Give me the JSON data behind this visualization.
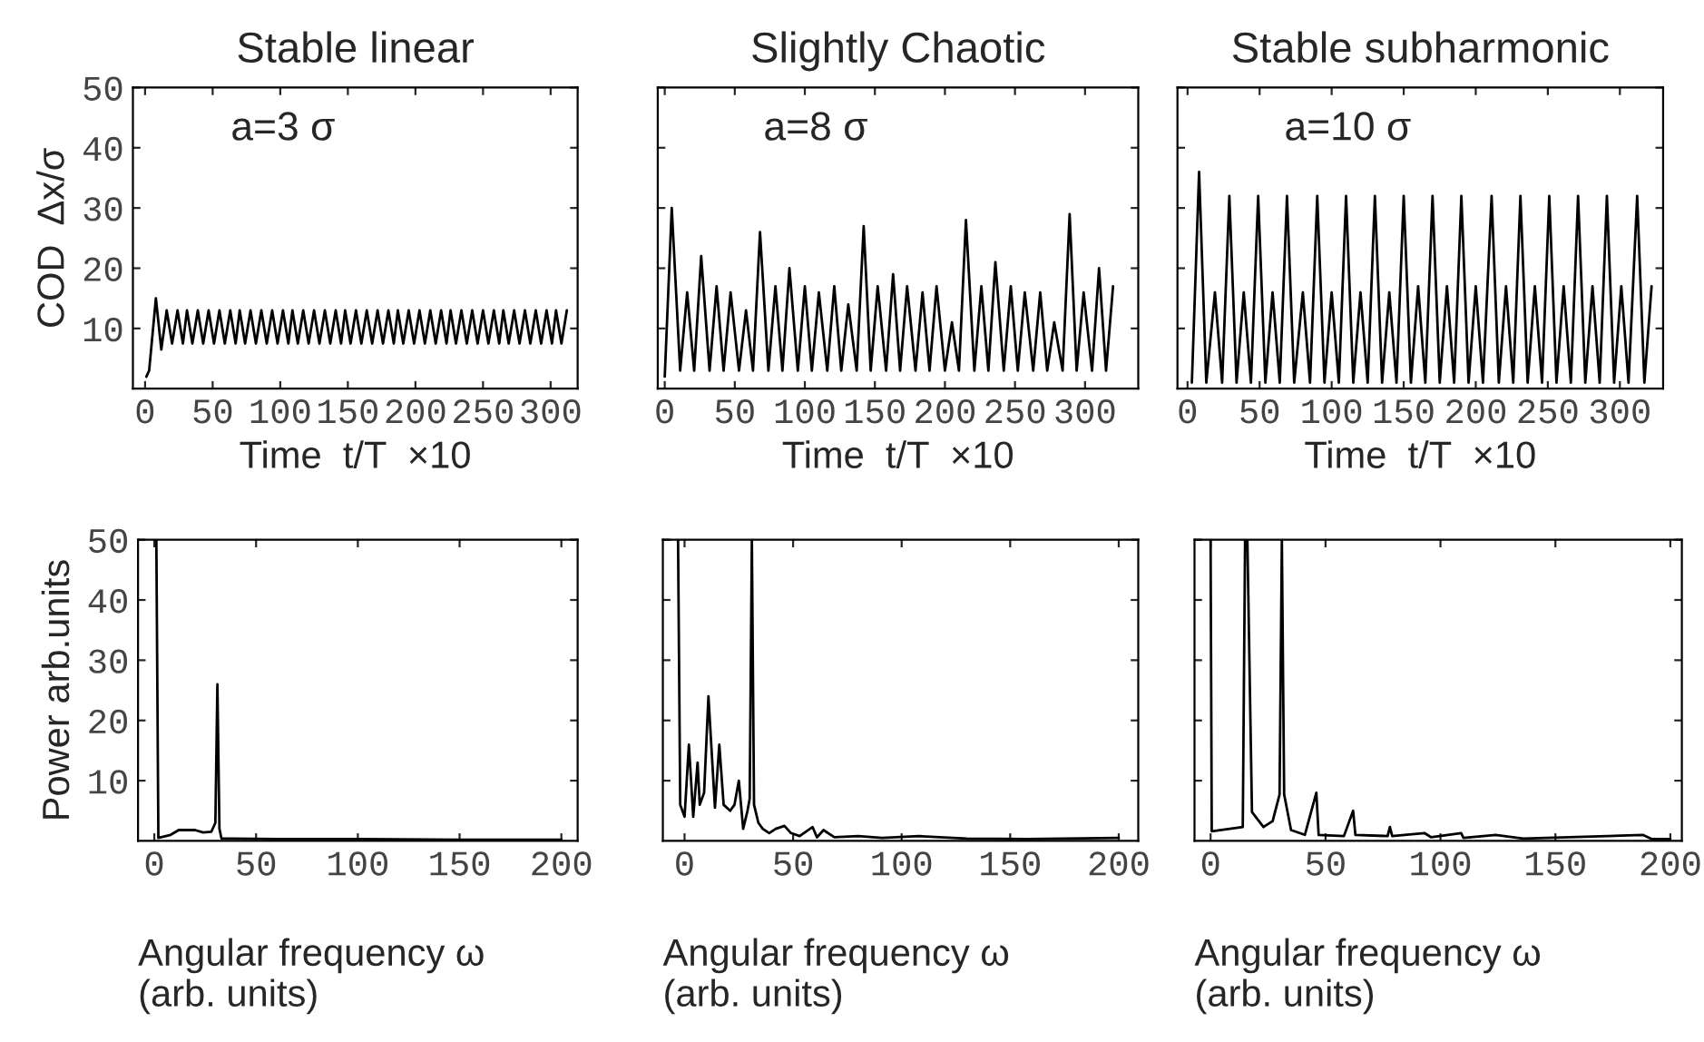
{
  "chart_data": [
    {
      "type": "line",
      "title": "Stable linear",
      "xlabel": "Time  t/T  ×10",
      "ylabel": "COD  Δx/σ",
      "annotations": [
        "a=3 σ"
      ],
      "xlim": [
        -9,
        320
      ],
      "ylim": [
        0,
        50
      ],
      "xticks": [
        0,
        50,
        100,
        150,
        200,
        250,
        300
      ],
      "yticks": [
        10,
        20,
        30,
        40,
        50
      ],
      "series": [
        {
          "color": "#000000",
          "x": [
            1,
            3,
            8,
            12,
            16,
            20,
            24,
            28,
            31,
            35,
            39,
            43,
            47,
            51,
            55,
            59,
            63,
            67,
            70,
            74,
            78,
            82,
            86,
            90,
            94,
            98,
            102,
            106,
            109,
            113,
            117,
            121,
            125,
            129,
            133,
            137,
            141,
            145,
            148,
            152,
            156,
            160,
            164,
            168,
            172,
            176,
            180,
            184,
            187,
            191,
            195,
            199,
            203,
            207,
            211,
            215,
            219,
            223,
            226,
            230,
            234,
            238,
            242,
            246,
            250,
            254,
            258,
            262,
            265,
            269,
            273,
            277,
            281,
            285,
            289,
            293,
            297,
            301,
            304,
            308,
            312
          ],
          "values": [
            2,
            3,
            15,
            6.5,
            13,
            7.5,
            13,
            7.5,
            13,
            7.5,
            13,
            7.5,
            13,
            7.5,
            13,
            7.5,
            13,
            7.5,
            13,
            7.5,
            13,
            7.5,
            13,
            7.5,
            13,
            7.5,
            13,
            7.5,
            13,
            7.5,
            13,
            7.5,
            13,
            7.5,
            13,
            7.5,
            13,
            7.5,
            13,
            7.5,
            13,
            7.5,
            13,
            7.5,
            13,
            7.5,
            13,
            7.5,
            13,
            7.5,
            13,
            7.5,
            13,
            7.5,
            13,
            7.5,
            13,
            7.5,
            13,
            7.5,
            13,
            7.5,
            13,
            7.5,
            13,
            7.5,
            13,
            7.5,
            13,
            7.5,
            13,
            7.5,
            13,
            7.5,
            13,
            7.5,
            13,
            7.5,
            13,
            7.5,
            13
          ]
        }
      ]
    },
    {
      "type": "line",
      "title": "Slightly Chaotic",
      "xlabel": "Time  t/T  ×10",
      "annotations": [
        "a=8 σ"
      ],
      "xlim": [
        -5,
        338
      ],
      "ylim": [
        0,
        50
      ],
      "xticks": [
        0,
        50,
        100,
        150,
        200,
        250,
        300
      ],
      "yticks": [
        10,
        20,
        30,
        40,
        50
      ],
      "tick_labels": "x",
      "series": [
        {
          "color": "#000000",
          "x": [
            0,
            5,
            11,
            16,
            21,
            26,
            32,
            37,
            42,
            47,
            53,
            58,
            63,
            68,
            74,
            79,
            84,
            89,
            95,
            100,
            105,
            110,
            116,
            121,
            126,
            131,
            137,
            142,
            147,
            152,
            158,
            163,
            168,
            173,
            179,
            184,
            189,
            194,
            200,
            205,
            210,
            215,
            221,
            226,
            231,
            236,
            242,
            247,
            252,
            257,
            263,
            268,
            273,
            278,
            284,
            289,
            294,
            299,
            305,
            310,
            315,
            320
          ],
          "values": [
            2,
            30,
            3,
            16,
            3,
            22,
            3,
            17,
            3,
            16,
            3,
            13,
            3,
            26,
            3,
            17,
            3,
            20,
            3,
            17,
            3,
            16,
            3,
            17,
            3,
            14,
            3,
            27,
            3,
            17,
            3,
            19,
            3,
            17,
            3,
            16,
            3,
            17,
            3,
            11,
            3,
            28,
            3,
            17,
            3,
            21,
            3,
            17,
            3,
            16,
            3,
            16,
            3,
            11,
            3,
            29,
            3,
            16,
            3,
            20,
            3,
            17
          ]
        }
      ]
    },
    {
      "type": "line",
      "title": "Stable subharmonic",
      "xlabel": "Time  t/T  ×10",
      "annotations": [
        "a=10 σ"
      ],
      "xlim": [
        -7,
        330
      ],
      "ylim": [
        0,
        50
      ],
      "xticks": [
        0,
        50,
        100,
        150,
        200,
        250,
        300
      ],
      "yticks": [
        10,
        20,
        30,
        40,
        50
      ],
      "tick_labels": "x",
      "series": [
        {
          "color": "#000000",
          "x": [
            3,
            8,
            13,
            19,
            24,
            29,
            34,
            39,
            44,
            49,
            54,
            59,
            64,
            69,
            74,
            80,
            85,
            90,
            95,
            100,
            105,
            110,
            115,
            120,
            125,
            130,
            135,
            140,
            145,
            150,
            155,
            160,
            165,
            170,
            175,
            180,
            185,
            190,
            195,
            200,
            205,
            211,
            216,
            221,
            226,
            231,
            236,
            241,
            246,
            251,
            256,
            261,
            266,
            271,
            276,
            281,
            286,
            291,
            296,
            301,
            306,
            312,
            317,
            322
          ],
          "values": [
            1,
            36,
            1,
            16,
            1,
            32,
            1,
            16,
            1,
            32,
            1,
            16,
            1,
            32,
            1,
            16,
            1,
            32,
            1,
            16,
            1,
            32,
            1,
            16,
            1,
            32,
            1,
            16,
            1,
            32,
            1,
            17,
            1,
            32,
            1,
            17,
            1,
            32,
            1,
            17,
            1,
            32,
            1,
            17,
            1,
            32,
            1,
            17,
            1,
            32,
            1,
            17,
            1,
            32,
            1,
            17,
            1,
            32,
            1,
            17,
            1,
            32,
            1,
            17
          ]
        }
      ]
    },
    {
      "type": "line",
      "xlabel": "Angular frequency ω\n(arb. units)",
      "ylabel": "Power arb.units",
      "xlim": [
        -8,
        208
      ],
      "ylim": [
        0,
        50
      ],
      "xticks": [
        0,
        50,
        100,
        150,
        200
      ],
      "yticks": [
        10,
        20,
        30,
        40,
        50
      ],
      "series": [
        {
          "color": "#000000",
          "x": [
            1,
            2,
            8,
            12,
            20,
            24,
            28,
            30,
            31,
            32,
            33,
            60,
            100,
            150,
            200
          ],
          "values": [
            50,
            0.5,
            1,
            1.8,
            1.8,
            1.4,
            1.5,
            3,
            26,
            2,
            0.4,
            0.3,
            0.3,
            0.2,
            0.2
          ]
        }
      ]
    },
    {
      "type": "line",
      "xlabel": "Angular frequency ω\n(arb. units)",
      "xlim": [
        -10,
        209
      ],
      "ylim": [
        0,
        50
      ],
      "xticks": [
        0,
        50,
        100,
        150,
        200
      ],
      "yticks": [
        10,
        20,
        30,
        40,
        50
      ],
      "tick_labels": "x",
      "series": [
        {
          "color": "#000000",
          "x": [
            -3,
            -2,
            0,
            2,
            4,
            6,
            7,
            9,
            11,
            14,
            16,
            18,
            21,
            23,
            25,
            27,
            29,
            30,
            31,
            32,
            34,
            36,
            39,
            42,
            46,
            49,
            53,
            59,
            61,
            64,
            69,
            80,
            91,
            108,
            130,
            158,
            200
          ],
          "values": [
            50,
            6,
            4,
            16,
            4,
            13,
            6,
            8,
            24,
            5.5,
            16,
            6,
            5,
            6,
            10,
            2,
            5,
            7,
            50,
            6,
            3,
            2,
            1.3,
            2,
            2.5,
            1.3,
            0.8,
            2.3,
            0.6,
            1.8,
            0.6,
            0.8,
            0.5,
            0.8,
            0.4,
            0.3,
            0.5
          ]
        }
      ]
    },
    {
      "type": "line",
      "xlabel": "Angular frequency ω\n(arb. units)",
      "xlim": [
        -7,
        205
      ],
      "ylim": [
        0,
        50
      ],
      "xticks": [
        0,
        50,
        100,
        150,
        200
      ],
      "yticks": [
        10,
        20,
        30,
        40,
        50
      ],
      "tick_labels": "x",
      "series": [
        {
          "color": "#000000",
          "x": [
            0,
            0.5,
            14,
            15,
            16,
            18,
            23,
            27,
            30,
            31,
            32,
            35,
            41,
            46,
            47,
            58,
            62,
            63,
            77,
            78,
            79,
            93,
            96,
            109,
            110,
            124,
            136,
            156,
            188,
            192,
            200
          ],
          "values": [
            50,
            1.6,
            2.3,
            50,
            50,
            4.8,
            2.3,
            3.3,
            7.7,
            50,
            7.7,
            1.8,
            1,
            8,
            1,
            0.8,
            5,
            1,
            0.8,
            2.3,
            0.8,
            1.3,
            0.6,
            1.3,
            0.5,
            1,
            0.4,
            0.6,
            1,
            0.3,
            0.3
          ]
        }
      ]
    }
  ]
}
